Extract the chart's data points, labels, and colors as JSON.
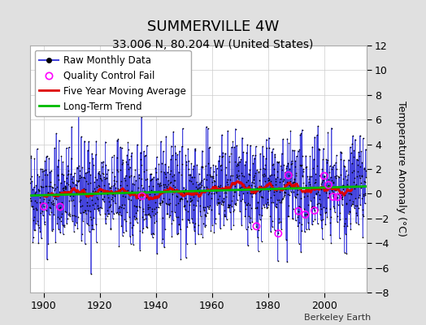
{
  "title": "SUMMERVILLE 4W",
  "subtitle": "33.006 N, 80.204 W (United States)",
  "ylabel": "Temperature Anomaly (°C)",
  "watermark": "Berkeley Earth",
  "xlim": [
    1895,
    2015
  ],
  "ylim": [
    -8,
    12
  ],
  "yticks": [
    -8,
    -6,
    -4,
    -2,
    0,
    2,
    4,
    6,
    8,
    10,
    12
  ],
  "xticks": [
    1900,
    1920,
    1940,
    1960,
    1980,
    2000
  ],
  "bg_color": "#e0e0e0",
  "plot_bg_color": "#ffffff",
  "raw_line_color": "#4444dd",
  "raw_dot_color": "#000000",
  "moving_avg_color": "#dd0000",
  "trend_color": "#00bb00",
  "qc_fail_color": "#ff00ff",
  "seed": 42,
  "start_year": 1895,
  "end_year": 2015,
  "noise_std": 2.0,
  "trend_slope": 0.004,
  "trend_intercept": -0.1,
  "title_fontsize": 13,
  "subtitle_fontsize": 10,
  "ylabel_fontsize": 9,
  "tick_fontsize": 9,
  "legend_fontsize": 8.5,
  "qc_fail_times": [
    1900.0,
    1905.8,
    1935.0,
    1975.8,
    1983.6,
    1987.2,
    1990.8,
    1993.2,
    1996.5,
    2000.0,
    2001.5,
    2003.1,
    2004.8
  ]
}
